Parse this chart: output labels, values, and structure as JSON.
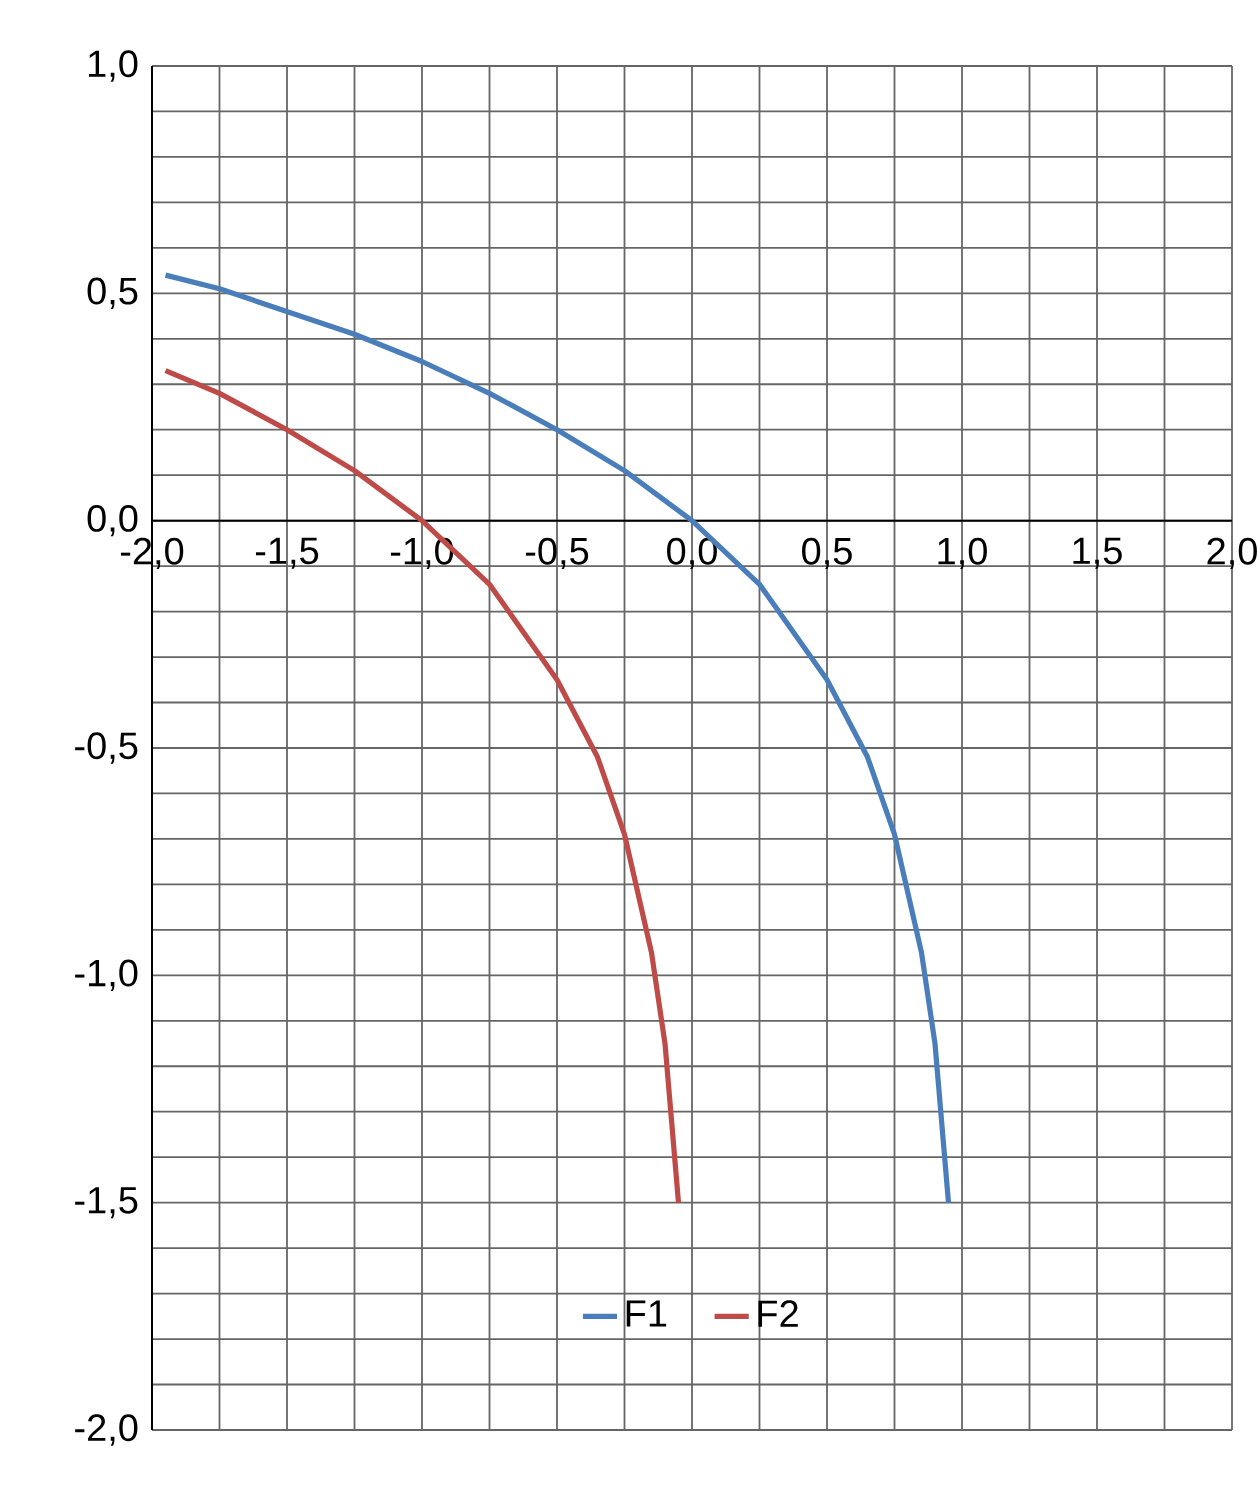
{
  "chart_data": {
    "type": "line",
    "xlim": [
      -2,
      2
    ],
    "ylim": [
      -2,
      1
    ],
    "xticks": [
      {
        "value": -2,
        "label": "-2,0"
      },
      {
        "value": -1.75,
        "label": null
      },
      {
        "value": -1.5,
        "label": "-1,5"
      },
      {
        "value": -1.25,
        "label": null
      },
      {
        "value": -1,
        "label": "-1,0"
      },
      {
        "value": -0.75,
        "label": null
      },
      {
        "value": -0.5,
        "label": "-0,5"
      },
      {
        "value": -0.25,
        "label": null
      },
      {
        "value": 0,
        "label": "0,0"
      },
      {
        "value": 0.25,
        "label": null
      },
      {
        "value": 0.5,
        "label": "0,5"
      },
      {
        "value": 0.75,
        "label": null
      },
      {
        "value": 1,
        "label": "1,0"
      },
      {
        "value": 1.25,
        "label": null
      },
      {
        "value": 1.5,
        "label": "1,5"
      },
      {
        "value": 1.75,
        "label": null
      },
      {
        "value": 2,
        "label": "2,0"
      }
    ],
    "yticks": [
      {
        "value": -2,
        "label": "-2,0"
      },
      {
        "value": -1.9,
        "label": null
      },
      {
        "value": -1.8,
        "label": null
      },
      {
        "value": -1.7,
        "label": null
      },
      {
        "value": -1.6,
        "label": null
      },
      {
        "value": -1.5,
        "label": "-1,5"
      },
      {
        "value": -1.4,
        "label": null
      },
      {
        "value": -1.3,
        "label": null
      },
      {
        "value": -1.2,
        "label": null
      },
      {
        "value": -1.1,
        "label": null
      },
      {
        "value": -1,
        "label": "-1,0"
      },
      {
        "value": -0.9,
        "label": null
      },
      {
        "value": -0.8,
        "label": null
      },
      {
        "value": -0.7,
        "label": null
      },
      {
        "value": -0.6,
        "label": null
      },
      {
        "value": -0.5,
        "label": "-0,5"
      },
      {
        "value": -0.4,
        "label": null
      },
      {
        "value": -0.3,
        "label": null
      },
      {
        "value": -0.2,
        "label": null
      },
      {
        "value": -0.1,
        "label": null
      },
      {
        "value": 0,
        "label": "0,0"
      },
      {
        "value": 0.1,
        "label": null
      },
      {
        "value": 0.2,
        "label": null
      },
      {
        "value": 0.3,
        "label": null
      },
      {
        "value": 0.4,
        "label": null
      },
      {
        "value": 0.5,
        "label": "0,5"
      },
      {
        "value": 0.6,
        "label": null
      },
      {
        "value": 0.7,
        "label": null
      },
      {
        "value": 0.8,
        "label": null
      },
      {
        "value": 0.9,
        "label": null
      },
      {
        "value": 1,
        "label": "1,0"
      }
    ],
    "grid": true,
    "legend": "bottom",
    "marker": "none",
    "line_style": "solid",
    "series": [
      {
        "name": "F1",
        "color": "#4a7ebb",
        "x": [
          -1.95,
          -1.75,
          -1.5,
          -1.25,
          -1,
          -0.75,
          -0.5,
          -0.25,
          0,
          0.25,
          0.5,
          0.65,
          0.75,
          0.85,
          0.9,
          0.95
        ],
        "values": [
          0.54,
          0.51,
          0.46,
          0.41,
          0.35,
          0.28,
          0.2,
          0.11,
          0,
          -0.14,
          -0.35,
          -0.52,
          -0.69,
          -0.95,
          -1.15,
          -1.5
        ]
      },
      {
        "name": "F2",
        "color": "#be4b48",
        "x": [
          -1.95,
          -1.75,
          -1.5,
          -1.25,
          -1,
          -0.75,
          -0.5,
          -0.35,
          -0.25,
          -0.15,
          -0.1,
          -0.05
        ],
        "values": [
          0.33,
          0.28,
          0.2,
          0.11,
          0,
          -0.14,
          -0.35,
          -0.52,
          -0.69,
          -0.95,
          -1.15,
          -1.5
        ]
      }
    ]
  }
}
